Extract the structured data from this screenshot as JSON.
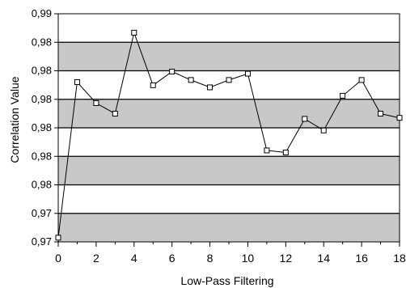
{
  "chart_data": {
    "type": "line",
    "title": "",
    "xlabel": "Low-Pass Filtering",
    "ylabel": "Correlation Value",
    "x": [
      0,
      1,
      2,
      3,
      4,
      5,
      6,
      7,
      8,
      9,
      10,
      11,
      12,
      13,
      14,
      15,
      16,
      17,
      18
    ],
    "series": [
      {
        "values": [
          0.9687,
          0.9835,
          0.9815,
          0.9805,
          0.9882,
          0.9832,
          0.9845,
          0.9837,
          0.983,
          0.9837,
          0.9843,
          0.977,
          0.9768,
          0.98,
          0.9789,
          0.9822,
          0.9837,
          0.9805,
          0.9801
        ]
      }
    ],
    "xlim": [
      0,
      18
    ],
    "ylim": [
      0.9683,
      0.99
    ],
    "xticks": [
      "0",
      "2",
      "4",
      "6",
      "8",
      "10",
      "12",
      "14",
      "16",
      "18"
    ],
    "yticks": [
      "0,97",
      "0,97",
      "0,98",
      "0,98",
      "0,98",
      "0,98",
      "0,98",
      "0,98",
      "0,99"
    ],
    "grid": "horizontal",
    "line_color": "#000000",
    "plot_background": "#ffffff",
    "band_color": "#c8c8c8",
    "marker": "square"
  }
}
